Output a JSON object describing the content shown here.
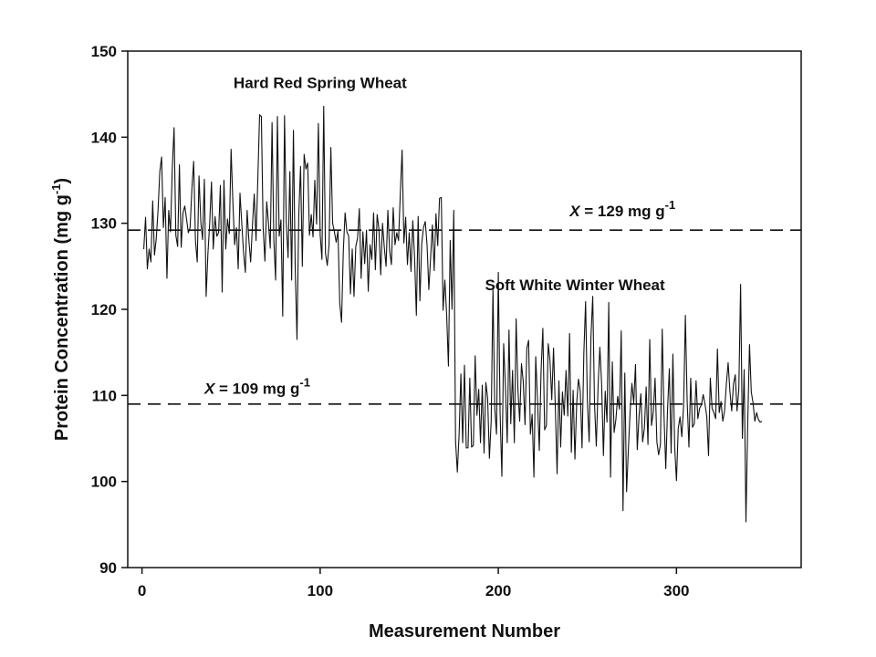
{
  "chart_data": {
    "type": "line",
    "xlabel": "Measurement Number",
    "ylabel_main": "Protein Concentration (mg g",
    "ylabel_sup": "-1",
    "ylabel_close": ")",
    "xlim": [
      -8,
      370
    ],
    "ylim": [
      90,
      150
    ],
    "xticks": [
      0,
      100,
      200,
      300
    ],
    "yticks": [
      90,
      100,
      110,
      120,
      130,
      140,
      150
    ],
    "grid": false,
    "series": [
      {
        "x_start": 1,
        "x_step": 1,
        "values": [
          127.0,
          130.7,
          124.7,
          127.0,
          125.5,
          132.6,
          126.3,
          128.2,
          131.5,
          136.0,
          137.7,
          129.5,
          133.0,
          123.6,
          131.5,
          129.0,
          136.4,
          141.1,
          128.6,
          127.3,
          136.8,
          127.2,
          131.2,
          132.0,
          130.5,
          128.9,
          129.5,
          134.0,
          137.2,
          128.0,
          125.5,
          135.5,
          130.2,
          128.1,
          135.1,
          121.5,
          126.5,
          130.0,
          134.8,
          127.0,
          130.8,
          128.5,
          128.9,
          134.4,
          122.0,
          135.0,
          127.0,
          130.5,
          128.8,
          138.6,
          132.5,
          127.5,
          129.5,
          124.7,
          133.5,
          130.0,
          126.6,
          124.3,
          131.5,
          128.0,
          125.5,
          129.8,
          133.4,
          128.0,
          135.0,
          142.6,
          142.4,
          129.5,
          125.6,
          132.5,
          130.0,
          127.1,
          141.7,
          128.1,
          123.4,
          142.4,
          128.5,
          130.4,
          119.2,
          142.5,
          130.0,
          126.0,
          136.0,
          123.4,
          140.8,
          124.8,
          116.5,
          131.0,
          136.6,
          125.0,
          138.0,
          136.3,
          137.0,
          128.6,
          131.0,
          128.4,
          135.0,
          129.9,
          141.6,
          128.7,
          125.8,
          143.6,
          126.5,
          125.1,
          127.5,
          138.8,
          130.0,
          129.0,
          127.8,
          129.1,
          120.7,
          118.5,
          126.8,
          131.2,
          129.0,
          128.5,
          121.8,
          127.0,
          121.5,
          127.3,
          128.3,
          131.7,
          123.6,
          129.0,
          125.3,
          129.2,
          122.1,
          127.5,
          125.8,
          131.2,
          124.6,
          131.0,
          129.3,
          124.0,
          130.0,
          127.2,
          125.0,
          131.5,
          126.8,
          125.2,
          131.8,
          127.5,
          128.9,
          128.0,
          133.5,
          138.5,
          127.7,
          130.7,
          125.2,
          128.9,
          124.4,
          130.3,
          126.0,
          119.3,
          130.8,
          121.0,
          127.6,
          129.5,
          130.2,
          127.5,
          122.3,
          126.0,
          129.8,
          124.5,
          131.1,
          127.4,
          132.9,
          133.0,
          119.9,
          123.4,
          119.4,
          113.4,
          128.0,
          120.0,
          131.5,
          104.7,
          101.1,
          105.5,
          112.5,
          104.5,
          113.5,
          103.9,
          103.9,
          112.0,
          104.0,
          104.2,
          114.6,
          107.7,
          110.7,
          104.5,
          111.2,
          103.3,
          111.5,
          109.7,
          102.7,
          107.0,
          122.4,
          108.5,
          105.5,
          124.3,
          108.0,
          100.6,
          116.0,
          111.0,
          104.5,
          117.6,
          106.7,
          112.9,
          104.5,
          118.9,
          110.7,
          107.0,
          113.7,
          111.6,
          106.6,
          115.5,
          116.4,
          105.5,
          107.8,
          100.5,
          114.5,
          109.4,
          103.6,
          112.8,
          117.8,
          106.0,
          106.5,
          116.0,
          114.1,
          109.5,
          115.5,
          108.6,
          100.9,
          111.7,
          104.0,
          110.4,
          107.7,
          112.9,
          107.6,
          117.2,
          103.4,
          110.6,
          102.6,
          109.1,
          111.9,
          110.5,
          103.9,
          114.8,
          120.9,
          109.3,
          104.6,
          116.8,
          121.5,
          109.0,
          104.1,
          111.1,
          115.6,
          111.3,
          103.0,
          110.5,
          106.9,
          120.8,
          100.5,
          113.9,
          105.7,
          107.2,
          109.9,
          108.4,
          117.5,
          96.6,
          112.6,
          98.8,
          103.7,
          108.2,
          111.4,
          109.1,
          113.6,
          103.7,
          107.6,
          110.2,
          104.6,
          106.2,
          111.0,
          104.3,
          116.5,
          106.5,
          108.1,
          112.0,
          104.6,
          103.1,
          104.3,
          117.7,
          107.7,
          101.5,
          108.4,
          113.1,
          103.3,
          114.8,
          104.0,
          100.1,
          106.2,
          107.5,
          105.2,
          108.8,
          119.3,
          109.3,
          104.0,
          112.0,
          106.3,
          106.7,
          111.7,
          107.3,
          108.5,
          108.9,
          110.1,
          109.0,
          107.6,
          103.0,
          112.0,
          108.5,
          108.0,
          107.3,
          115.4,
          108.0,
          109.3,
          107.0,
          108.2,
          111.3,
          113.8,
          110.5,
          108.2,
          111.3,
          112.4,
          108.2,
          110.7,
          122.9,
          105.0,
          113.0,
          95.3,
          106.8,
          115.9,
          110.4,
          109.1,
          107.0,
          108.0,
          107.2,
          106.9,
          107.0
        ]
      }
    ],
    "reference_lines": [
      {
        "y": 129.2
      },
      {
        "y": 109.0
      }
    ],
    "annotations": [
      {
        "id": "hrs",
        "text": "Hard Red Spring Wheat",
        "x": 100,
        "y": 145.7
      },
      {
        "id": "sww",
        "text": "Soft White Winter Wheat",
        "x": 243,
        "y": 122.2
      }
    ],
    "mean_labels": [
      {
        "id": "mean-129",
        "var": "X",
        "text": " = 129 mg g",
        "sup": "-1",
        "x": 240,
        "y": 130.8
      },
      {
        "id": "mean-109",
        "var": "X",
        "text": " = 109 mg g",
        "sup": "-1",
        "x": 35,
        "y": 110.2
      }
    ]
  }
}
